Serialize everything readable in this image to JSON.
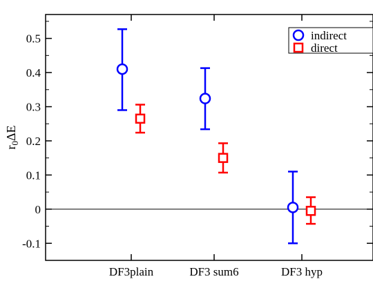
{
  "chart_data": {
    "type": "scatter",
    "categories": [
      "DF3plain",
      "DF3 sum6",
      "DF3 hyp"
    ],
    "ylabel_main": "r",
    "ylabel_sub": "0",
    "ylabel_rest": "ΔE",
    "xlabel": "",
    "title": "",
    "ylim": [
      -0.15,
      0.57
    ],
    "yticks": [
      -0.1,
      0,
      0.1,
      0.2,
      0.3,
      0.4,
      0.5
    ],
    "ytick_labels": [
      "-0.1",
      "0",
      "0.1",
      "0.2",
      "0.3",
      "0.4",
      "0.5"
    ],
    "zero_line": true,
    "grid": false,
    "legend_position": "top-right",
    "series": [
      {
        "name": "indirect",
        "marker": "circle",
        "color": "#0000ff",
        "values": [
          0.41,
          0.324,
          0.005
        ],
        "err_low": [
          0.29,
          0.234,
          -0.1
        ],
        "err_high": [
          0.527,
          0.413,
          0.11
        ]
      },
      {
        "name": "direct",
        "marker": "square",
        "color": "#ff0000",
        "values": [
          0.265,
          0.15,
          -0.005
        ],
        "err_low": [
          0.224,
          0.107,
          -0.043
        ],
        "err_high": [
          0.306,
          0.193,
          0.035
        ]
      }
    ]
  }
}
